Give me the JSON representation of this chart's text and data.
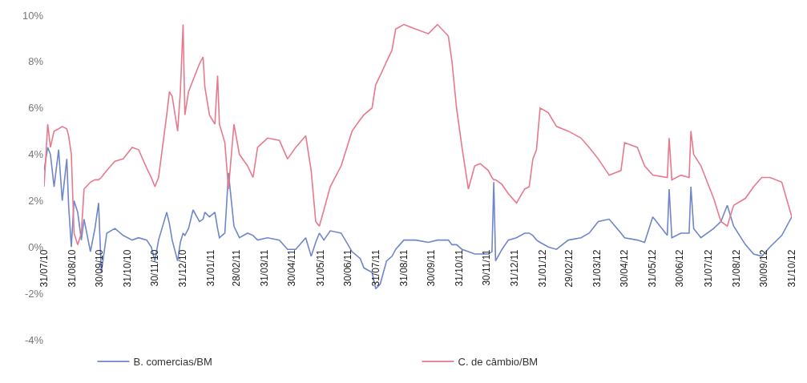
{
  "chart_data": {
    "type": "line",
    "x": [
      "2010-07-31",
      "2010-08-04",
      "2010-08-07",
      "2010-08-11",
      "2010-08-16",
      "2010-08-20",
      "2010-08-25",
      "2010-08-27",
      "2010-08-30",
      "2010-09-02",
      "2010-09-06",
      "2010-09-10",
      "2010-09-13",
      "2010-09-20",
      "2010-09-25",
      "2010-09-29",
      "2010-10-02",
      "2010-10-08",
      "2010-10-17",
      "2010-10-26",
      "2010-11-05",
      "2010-11-12",
      "2010-11-21",
      "2010-11-26",
      "2010-11-30",
      "2010-12-04",
      "2010-12-13",
      "2010-12-16",
      "2010-12-19",
      "2010-12-25",
      "2010-12-28",
      "2010-12-31",
      "2011-01-02",
      "2011-01-06",
      "2011-01-11",
      "2011-01-18",
      "2011-01-22",
      "2011-01-24",
      "2011-01-29",
      "2011-02-04",
      "2011-02-07",
      "2011-02-09",
      "2011-02-15",
      "2011-02-19",
      "2011-02-25",
      "2011-03-03",
      "2011-03-12",
      "2011-03-18",
      "2011-03-23",
      "2011-04-03",
      "2011-04-16",
      "2011-04-25",
      "2011-05-04",
      "2011-05-15",
      "2011-05-21",
      "2011-05-26",
      "2011-05-30",
      "2011-06-04",
      "2011-06-11",
      "2011-06-23",
      "2011-07-05",
      "2011-07-14",
      "2011-07-18",
      "2011-07-27",
      "2011-07-31",
      "2011-08-05",
      "2011-08-12",
      "2011-08-18",
      "2011-08-22",
      "2011-08-31",
      "2011-09-13",
      "2011-09-27",
      "2011-10-07",
      "2011-10-19",
      "2011-10-23",
      "2011-10-28",
      "2011-11-03",
      "2011-11-10",
      "2011-11-17",
      "2011-11-23",
      "2011-12-02",
      "2011-12-06",
      "2011-12-08",
      "2011-12-10",
      "2011-12-17",
      "2011-12-24",
      "2012-01-02",
      "2012-01-11",
      "2012-01-16",
      "2012-01-20",
      "2012-01-24",
      "2012-01-28",
      "2012-02-06",
      "2012-02-15",
      "2012-02-28",
      "2012-03-13",
      "2012-03-22",
      "2012-04-01",
      "2012-04-13",
      "2012-04-26",
      "2012-04-30",
      "2012-05-14",
      "2012-05-22",
      "2012-05-31",
      "2012-06-16",
      "2012-06-18",
      "2012-06-21",
      "2012-07-01",
      "2012-07-10",
      "2012-07-12",
      "2012-07-15",
      "2012-07-23",
      "2012-08-06",
      "2012-08-14",
      "2012-08-21",
      "2012-08-28",
      "2012-09-10",
      "2012-09-19",
      "2012-09-28",
      "2012-10-07",
      "2012-10-20",
      "2012-10-31"
    ],
    "series": [
      {
        "name": "B. comercias/BM",
        "color": "#6f86c8",
        "values": [
          3.3,
          4.3,
          4.0,
          2.6,
          4.2,
          2.0,
          3.8,
          1.8,
          0.0,
          2.0,
          1.5,
          0.3,
          1.2,
          -0.2,
          0.8,
          1.9,
          -1.1,
          0.6,
          0.8,
          0.5,
          0.3,
          0.4,
          0.3,
          0.0,
          -0.6,
          0.3,
          1.5,
          1.0,
          0.3,
          -0.6,
          0.2,
          0.6,
          0.5,
          0.8,
          1.6,
          1.1,
          1.2,
          1.5,
          1.3,
          1.5,
          0.8,
          0.4,
          0.6,
          3.2,
          0.9,
          0.4,
          0.6,
          0.5,
          0.3,
          0.4,
          0.3,
          -0.1,
          -0.1,
          0.4,
          -0.4,
          0.2,
          0.6,
          0.3,
          0.7,
          0.6,
          -0.2,
          -0.5,
          -0.9,
          -1.1,
          -1.8,
          -1.6,
          -0.6,
          -0.4,
          -0.1,
          0.3,
          0.3,
          0.2,
          0.3,
          0.3,
          0.1,
          0.1,
          -0.1,
          -0.2,
          -0.3,
          -0.3,
          -0.3,
          -0.2,
          2.8,
          -0.6,
          -0.1,
          0.3,
          0.4,
          0.6,
          0.6,
          0.5,
          0.3,
          0.2,
          0.0,
          -0.1,
          0.3,
          0.4,
          0.6,
          1.1,
          1.2,
          0.6,
          0.4,
          0.3,
          0.2,
          1.3,
          0.5,
          2.5,
          0.4,
          0.6,
          0.6,
          2.6,
          0.8,
          0.4,
          0.8,
          1.1,
          1.8,
          0.9,
          0.1,
          -0.3,
          -0.4,
          0.0,
          0.5,
          1.3
        ]
      },
      {
        "name": "C. de câmbio/BM",
        "color": "#e7798d",
        "values": [
          2.6,
          5.3,
          4.3,
          5.0,
          5.1,
          5.2,
          5.1,
          4.8,
          4.0,
          0.6,
          0.1,
          0.6,
          2.5,
          2.8,
          2.9,
          2.9,
          3.0,
          3.3,
          3.7,
          3.8,
          4.3,
          4.2,
          3.4,
          3.0,
          2.6,
          3.0,
          5.7,
          6.7,
          6.5,
          5.0,
          6.7,
          9.6,
          5.7,
          6.7,
          7.2,
          7.9,
          8.2,
          6.9,
          5.7,
          5.3,
          7.4,
          5.3,
          4.5,
          2.5,
          5.3,
          4.0,
          3.5,
          3.0,
          4.3,
          4.7,
          4.6,
          3.8,
          4.3,
          4.8,
          3.3,
          1.1,
          0.9,
          1.6,
          2.6,
          3.5,
          5.0,
          5.5,
          5.7,
          6.0,
          7.0,
          7.4,
          8.0,
          8.5,
          9.4,
          9.6,
          9.4,
          9.2,
          9.6,
          9.1,
          8.0,
          6.0,
          4.3,
          2.5,
          3.5,
          3.6,
          3.3,
          3.0,
          2.9,
          2.9,
          2.7,
          2.3,
          1.9,
          2.5,
          2.6,
          3.8,
          4.2,
          6.0,
          5.8,
          5.2,
          5.0,
          4.7,
          4.3,
          3.8,
          3.1,
          3.3,
          4.5,
          4.3,
          3.5,
          3.1,
          3.0,
          4.7,
          2.9,
          3.1,
          3.0,
          5.0,
          4.0,
          3.5,
          2.1,
          1.1,
          0.9,
          1.8,
          2.1,
          2.6,
          3.0,
          3.0,
          2.8,
          1.3
        ]
      }
    ],
    "xlim": [
      "2010-07-31",
      "2012-10-31"
    ],
    "xticks": [
      {
        "value": "2010-07-31",
        "label": "31/07/10"
      },
      {
        "value": "2010-08-31",
        "label": "31/08/10"
      },
      {
        "value": "2010-09-30",
        "label": "30/09/10"
      },
      {
        "value": "2010-10-31",
        "label": "31/10/10"
      },
      {
        "value": "2010-11-30",
        "label": "30/11/10"
      },
      {
        "value": "2010-12-31",
        "label": "31/12/10"
      },
      {
        "value": "2011-01-31",
        "label": "31/01/11"
      },
      {
        "value": "2011-02-28",
        "label": "28/02/11"
      },
      {
        "value": "2011-03-31",
        "label": "31/03/11"
      },
      {
        "value": "2011-04-30",
        "label": "30/04/11"
      },
      {
        "value": "2011-05-31",
        "label": "31/05/11"
      },
      {
        "value": "2011-06-30",
        "label": "30/06/11"
      },
      {
        "value": "2011-07-31",
        "label": "31/07/11"
      },
      {
        "value": "2011-08-31",
        "label": "31/08/11"
      },
      {
        "value": "2011-09-30",
        "label": "30/09/11"
      },
      {
        "value": "2011-10-31",
        "label": "31/10/11"
      },
      {
        "value": "2011-11-30",
        "label": "30/11/11"
      },
      {
        "value": "2011-12-31",
        "label": "31/12/11"
      },
      {
        "value": "2012-01-31",
        "label": "31/01/12"
      },
      {
        "value": "2012-02-29",
        "label": "29/02/12"
      },
      {
        "value": "2012-03-31",
        "label": "31/03/12"
      },
      {
        "value": "2012-04-30",
        "label": "30/04/12"
      },
      {
        "value": "2012-05-31",
        "label": "31/05/12"
      },
      {
        "value": "2012-06-30",
        "label": "30/06/12"
      },
      {
        "value": "2012-07-31",
        "label": "31/07/12"
      },
      {
        "value": "2012-08-31",
        "label": "31/08/12"
      },
      {
        "value": "2012-09-30",
        "label": "30/09/12"
      },
      {
        "value": "2012-10-31",
        "label": "31/10/12"
      }
    ],
    "ylim": [
      -4,
      10
    ],
    "yticks": [
      {
        "value": -4,
        "label": "-4%"
      },
      {
        "value": -2,
        "label": "-2%"
      },
      {
        "value": 0,
        "label": "0%"
      },
      {
        "value": 2,
        "label": "2%"
      },
      {
        "value": 4,
        "label": "4%"
      },
      {
        "value": 6,
        "label": "6%"
      },
      {
        "value": 8,
        "label": "8%"
      },
      {
        "value": 10,
        "label": "10%"
      }
    ],
    "legend": "bottom",
    "marker": "none",
    "line_style": "solid"
  }
}
